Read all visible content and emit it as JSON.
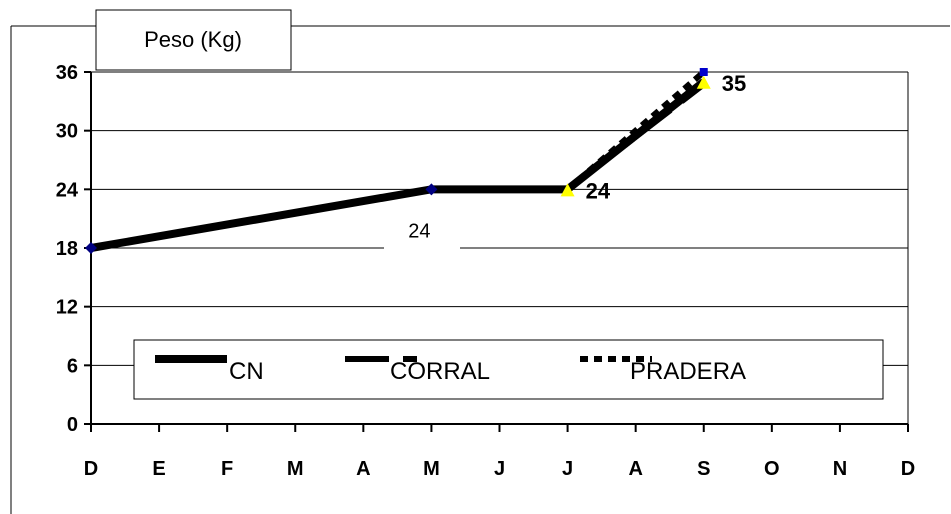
{
  "chart_data": {
    "type": "line",
    "title": "Peso (Kg)",
    "categories": [
      "D",
      "E",
      "F",
      "M",
      "A",
      "M",
      "J",
      "J",
      "A",
      "S",
      "O",
      "N",
      "D"
    ],
    "yticks": [
      "0",
      "6",
      "12",
      "18",
      "24",
      "30",
      "36"
    ],
    "ylim": [
      0,
      36
    ],
    "grid": "horizontal",
    "legend_position": "bottom",
    "series": [
      {
        "name": "CN",
        "style": "solid",
        "color": "#000000",
        "points": [
          {
            "x": 0,
            "y": 18
          },
          {
            "x": 5,
            "y": 24
          },
          {
            "x": 7,
            "y": 24
          },
          {
            "x": 9,
            "y": 35
          }
        ]
      },
      {
        "name": "CORRAL",
        "style": "dashed",
        "color": "#000000",
        "points": [
          {
            "x": 7,
            "y": 24
          },
          {
            "x": 9,
            "y": 35
          }
        ]
      },
      {
        "name": "PRADERA",
        "style": "dotted",
        "color": "#000000",
        "points": [
          {
            "x": 7,
            "y": 24
          },
          {
            "x": 9,
            "y": 36
          }
        ]
      }
    ],
    "markers": [
      {
        "x": 0,
        "y": 18,
        "shape": "diamond",
        "color": "#000080"
      },
      {
        "x": 5,
        "y": 24,
        "shape": "diamond",
        "color": "#000080"
      },
      {
        "x": 7,
        "y": 24,
        "shape": "triangle",
        "color": "#FFFF00"
      },
      {
        "x": 9,
        "y": 35,
        "shape": "triangle",
        "color": "#FFFF00"
      },
      {
        "x": 9,
        "y": 36,
        "shape": "square",
        "color": "#0000CC"
      }
    ],
    "data_labels": [
      {
        "text": "24",
        "x": 7,
        "y": 24,
        "style": "bold"
      },
      {
        "text": "35",
        "x": 9,
        "y": 35,
        "style": "bold"
      },
      {
        "text": "24",
        "x": 5,
        "y": 24,
        "style": "plain"
      }
    ]
  }
}
